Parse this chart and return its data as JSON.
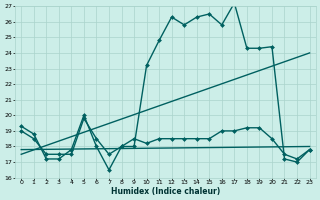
{
  "title": "",
  "xlabel": "Humidex (Indice chaleur)",
  "ylabel": "",
  "bg_color": "#cceee8",
  "grid_color": "#aad4cc",
  "line_color": "#006060",
  "xlim": [
    -0.5,
    23.5
  ],
  "ylim": [
    16,
    27
  ],
  "xticks": [
    0,
    1,
    2,
    3,
    4,
    5,
    6,
    7,
    8,
    9,
    10,
    11,
    12,
    13,
    14,
    15,
    16,
    17,
    18,
    19,
    20,
    21,
    22,
    23
  ],
  "yticks": [
    16,
    17,
    18,
    19,
    20,
    21,
    22,
    23,
    24,
    25,
    26,
    27
  ],
  "series": [
    {
      "x": [
        0,
        1,
        2,
        3,
        4,
        5,
        6,
        7,
        8,
        9,
        10,
        11,
        12,
        13,
        14,
        15,
        16,
        17,
        18,
        19,
        20,
        21,
        22,
        23
      ],
      "y": [
        19.3,
        18.8,
        17.2,
        17.2,
        17.8,
        20.0,
        18.0,
        16.5,
        18.0,
        18.0,
        23.2,
        24.8,
        26.3,
        25.8,
        26.3,
        26.5,
        25.8,
        27.2,
        24.3,
        24.3,
        24.4,
        17.2,
        17.0,
        17.8
      ],
      "marker": "D",
      "markersize": 2.0,
      "linewidth": 1.0,
      "linestyle": "-"
    },
    {
      "x": [
        0,
        23
      ],
      "y": [
        17.5,
        24.0
      ],
      "marker": null,
      "markersize": 0,
      "linewidth": 1.0,
      "linestyle": "-"
    },
    {
      "x": [
        0,
        23
      ],
      "y": [
        17.8,
        18.0
      ],
      "marker": null,
      "markersize": 0,
      "linewidth": 1.0,
      "linestyle": "-"
    },
    {
      "x": [
        0,
        1,
        2,
        3,
        4,
        5,
        6,
        7,
        8,
        9,
        10,
        11,
        12,
        13,
        14,
        15,
        16,
        17,
        18,
        19,
        20,
        21,
        22,
        23
      ],
      "y": [
        19.0,
        18.5,
        17.5,
        17.5,
        17.5,
        19.8,
        18.5,
        17.5,
        18.0,
        18.5,
        18.2,
        18.5,
        18.5,
        18.5,
        18.5,
        18.5,
        19.0,
        19.0,
        19.2,
        19.2,
        18.5,
        17.5,
        17.2,
        17.8
      ],
      "marker": "D",
      "markersize": 2.0,
      "linewidth": 1.0,
      "linestyle": "-"
    }
  ]
}
